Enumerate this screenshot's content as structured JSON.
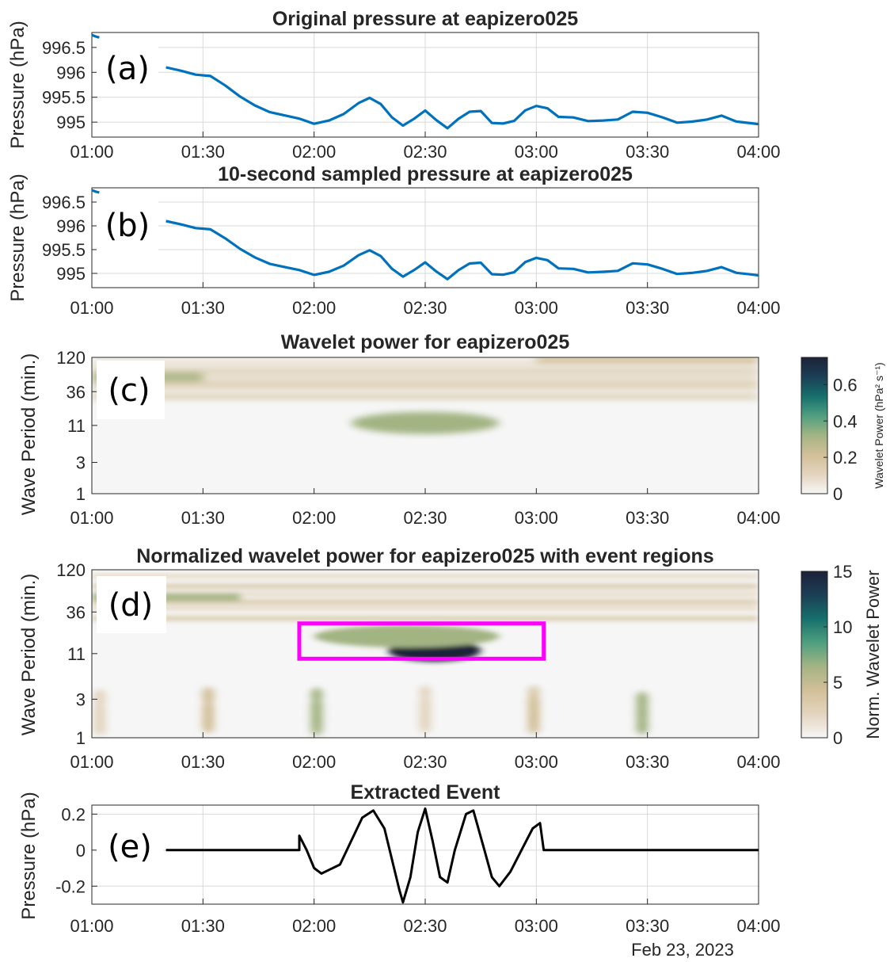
{
  "figure": {
    "date_label": "Feb 23, 2023",
    "time_ticks": [
      "01:00",
      "01:30",
      "02:00",
      "02:30",
      "03:00",
      "03:30",
      "04:00"
    ]
  },
  "colors": {
    "pressure_line": "#0072bd",
    "event_line": "#000000",
    "event_box": "#ff00ff",
    "colormap": [
      "#f6f6f6",
      "#e3d4be",
      "#d2bf98",
      "#a3b483",
      "#4f9f80",
      "#16706c",
      "#1c3f55",
      "#1c2238"
    ]
  },
  "chart_data": [
    {
      "panel": "a",
      "type": "line",
      "title": "Original pressure at eapizero025",
      "ylabel": "Pressure (hPa)",
      "xlim": [
        "01:00",
        "04:00"
      ],
      "ylim": [
        994.7,
        996.8
      ],
      "yticks": [
        "995",
        "995.5",
        "996",
        "996.5"
      ],
      "series": [
        {
          "points": [
            [
              "01:00",
              996.75
            ],
            [
              "01:01",
              996.72
            ],
            [
              "01:02",
              996.7
            ]
          ]
        },
        {
          "points": [
            [
              "01:20",
              996.1
            ],
            [
              "01:24",
              996.05
            ],
            [
              "01:28",
              995.97
            ],
            [
              "01:32",
              995.93
            ],
            [
              "01:36",
              995.72
            ],
            [
              "01:40",
              995.5
            ],
            [
              "01:44",
              995.33
            ],
            [
              "01:48",
              995.22
            ],
            [
              "01:52",
              995.15
            ],
            [
              "01:56",
              995.08
            ],
            [
              "02:00",
              994.95
            ],
            [
              "02:04",
              995.02
            ],
            [
              "02:08",
              995.15
            ],
            [
              "02:12",
              995.4
            ],
            [
              "02:15",
              995.5
            ],
            [
              "02:18",
              995.38
            ],
            [
              "02:21",
              995.08
            ],
            [
              "02:24",
              994.92
            ],
            [
              "02:27",
              995.05
            ],
            [
              "02:30",
              995.25
            ],
            [
              "02:33",
              995.05
            ],
            [
              "02:36",
              994.9
            ],
            [
              "02:39",
              995.05
            ],
            [
              "02:42",
              995.2
            ],
            [
              "02:45",
              995.2
            ],
            [
              "02:48",
              995.0
            ],
            [
              "02:51",
              994.98
            ],
            [
              "02:54",
              995.05
            ],
            [
              "02:57",
              995.22
            ],
            [
              "03:00",
              995.32
            ],
            [
              "03:03",
              995.25
            ],
            [
              "03:06",
              995.12
            ],
            [
              "03:10",
              995.1
            ],
            [
              "03:14",
              995.05
            ],
            [
              "03:18",
              995.02
            ],
            [
              "03:22",
              995.05
            ],
            [
              "03:26",
              995.18
            ],
            [
              "03:30",
              995.2
            ],
            [
              "03:34",
              995.1
            ],
            [
              "03:38",
              995.02
            ],
            [
              "03:42",
              995.0
            ],
            [
              "03:46",
              995.05
            ],
            [
              "03:50",
              995.1
            ],
            [
              "03:54",
              995.02
            ],
            [
              "03:58",
              994.98
            ],
            [
              "04:00",
              994.99
            ]
          ]
        }
      ]
    },
    {
      "panel": "b",
      "type": "line",
      "title": "10-second sampled pressure at eapizero025",
      "ylabel": "Pressure (hPa)",
      "xlim": [
        "01:00",
        "04:00"
      ],
      "ylim": [
        994.7,
        996.8
      ],
      "yticks": [
        "995",
        "995.5",
        "996",
        "996.5"
      ],
      "series": [
        {
          "points": [
            [
              "01:00",
              996.75
            ],
            [
              "01:01",
              996.72
            ],
            [
              "01:02",
              996.7
            ]
          ]
        },
        {
          "points": [
            [
              "01:20",
              996.1
            ],
            [
              "01:24",
              996.05
            ],
            [
              "01:28",
              995.97
            ],
            [
              "01:32",
              995.93
            ],
            [
              "01:36",
              995.72
            ],
            [
              "01:40",
              995.5
            ],
            [
              "01:44",
              995.33
            ],
            [
              "01:48",
              995.22
            ],
            [
              "01:52",
              995.15
            ],
            [
              "01:56",
              995.08
            ],
            [
              "02:00",
              994.95
            ],
            [
              "02:04",
              995.02
            ],
            [
              "02:08",
              995.15
            ],
            [
              "02:12",
              995.4
            ],
            [
              "02:15",
              995.5
            ],
            [
              "02:18",
              995.38
            ],
            [
              "02:21",
              995.08
            ],
            [
              "02:24",
              994.92
            ],
            [
              "02:27",
              995.05
            ],
            [
              "02:30",
              995.25
            ],
            [
              "02:33",
              995.05
            ],
            [
              "02:36",
              994.9
            ],
            [
              "02:39",
              995.05
            ],
            [
              "02:42",
              995.2
            ],
            [
              "02:45",
              995.2
            ],
            [
              "02:48",
              995.0
            ],
            [
              "02:51",
              994.98
            ],
            [
              "02:54",
              995.05
            ],
            [
              "02:57",
              995.22
            ],
            [
              "03:00",
              995.32
            ],
            [
              "03:03",
              995.25
            ],
            [
              "03:06",
              995.12
            ],
            [
              "03:10",
              995.1
            ],
            [
              "03:14",
              995.05
            ],
            [
              "03:18",
              995.02
            ],
            [
              "03:22",
              995.05
            ],
            [
              "03:26",
              995.18
            ],
            [
              "03:30",
              995.2
            ],
            [
              "03:34",
              995.1
            ],
            [
              "03:38",
              995.02
            ],
            [
              "03:42",
              995.0
            ],
            [
              "03:46",
              995.05
            ],
            [
              "03:50",
              995.1
            ],
            [
              "03:54",
              995.02
            ],
            [
              "03:58",
              994.98
            ],
            [
              "04:00",
              994.99
            ]
          ]
        }
      ]
    },
    {
      "panel": "c",
      "type": "heatmap",
      "title": "Wavelet power for eapizero025",
      "ylabel": "Wave Period (min.)",
      "yscale": "log",
      "ylim": [
        1,
        120
      ],
      "yticks": [
        "1",
        "3",
        "11",
        "36",
        "120"
      ],
      "xlim": [
        "01:00",
        "04:00"
      ],
      "colorbar": {
        "label": "Wavelet Power (hPa² s⁻¹)",
        "range": [
          0,
          0.75
        ],
        "ticks": [
          "0",
          "0.2",
          "0.4",
          "0.6"
        ]
      },
      "features": [
        {
          "kind": "band",
          "period_min": 60,
          "from": "01:00",
          "to": "01:30",
          "level": 0.35
        },
        {
          "kind": "band",
          "period_min": 110,
          "from": "03:00",
          "to": "04:00",
          "level": 0.25
        },
        {
          "kind": "blob",
          "period_min": 12,
          "from": "02:10",
          "to": "02:50",
          "level": 0.3
        }
      ]
    },
    {
      "panel": "d",
      "type": "heatmap",
      "title": "Normalized wavelet power for eapizero025 with event regions",
      "ylabel": "Wave Period (min.)",
      "yscale": "log",
      "ylim": [
        1,
        120
      ],
      "yticks": [
        "1",
        "3",
        "11",
        "36",
        "120"
      ],
      "xlim": [
        "01:00",
        "04:00"
      ],
      "colorbar": {
        "label": "Norm. Wavelet Power",
        "range": [
          0,
          15
        ],
        "ticks": [
          "0",
          "5",
          "10",
          "15"
        ]
      },
      "event_box": {
        "from": "01:56",
        "to": "03:02",
        "period_range": [
          9.5,
          26
        ]
      },
      "features": [
        {
          "kind": "blob",
          "period_min": 12,
          "from": "02:20",
          "to": "02:45",
          "level": 14
        },
        {
          "kind": "blob",
          "period_min": 18,
          "from": "02:00",
          "to": "02:50",
          "level": 7
        },
        {
          "kind": "band",
          "period_min": 55,
          "from": "01:00",
          "to": "01:40",
          "level": 6
        }
      ]
    },
    {
      "panel": "e",
      "type": "line",
      "title": "Extracted Event",
      "ylabel": "Pressure (hPa)",
      "xlim": [
        "01:00",
        "04:00"
      ],
      "ylim": [
        -0.3,
        0.25
      ],
      "yticks": [
        "-0.2",
        "0",
        "0.2"
      ],
      "series": [
        {
          "points": [
            [
              "01:20",
              0.0
            ],
            [
              "01:56",
              0.0
            ],
            [
              "01:56",
              0.08
            ],
            [
              "01:58",
              0.0
            ],
            [
              "02:00",
              -0.1
            ],
            [
              "02:02",
              -0.13
            ],
            [
              "02:04",
              -0.11
            ],
            [
              "02:07",
              -0.08
            ],
            [
              "02:10",
              0.05
            ],
            [
              "02:13",
              0.18
            ],
            [
              "02:16",
              0.22
            ],
            [
              "02:19",
              0.12
            ],
            [
              "02:21",
              -0.05
            ],
            [
              "02:23",
              -0.22
            ],
            [
              "02:24",
              -0.29
            ],
            [
              "02:26",
              -0.15
            ],
            [
              "02:28",
              0.1
            ],
            [
              "02:30",
              0.23
            ],
            [
              "02:32",
              0.05
            ],
            [
              "02:34",
              -0.15
            ],
            [
              "02:36",
              -0.18
            ],
            [
              "02:38",
              0.0
            ],
            [
              "02:41",
              0.2
            ],
            [
              "02:43",
              0.22
            ],
            [
              "02:46",
              0.0
            ],
            [
              "02:48",
              -0.15
            ],
            [
              "02:50",
              -0.2
            ],
            [
              "02:53",
              -0.12
            ],
            [
              "02:56",
              0.0
            ],
            [
              "02:59",
              0.12
            ],
            [
              "03:01",
              0.15
            ],
            [
              "03:02",
              0.0
            ],
            [
              "04:00",
              0.0
            ]
          ]
        }
      ]
    }
  ]
}
